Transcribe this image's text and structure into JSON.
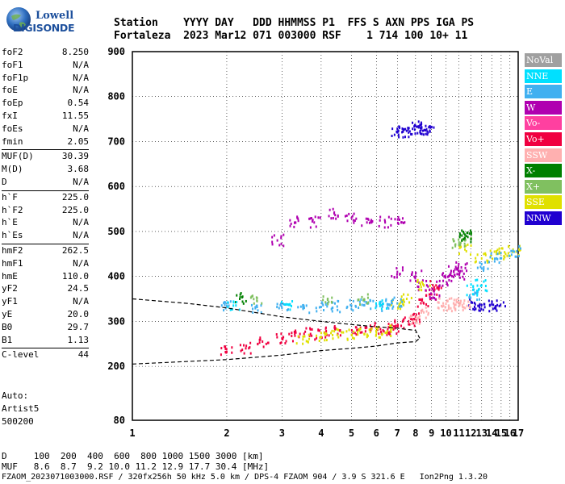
{
  "logo": {
    "top": "Lowell",
    "bottom": "DIGISONDE"
  },
  "header": {
    "line1": "Station    YYYY DAY   DDD HHMMSS P1  FFS S AXN PPS IGA PS",
    "line2": "Fortaleza  2023 Mar12 071 003000 RSF    1 714 100 10+ 11"
  },
  "parameters": [
    {
      "label": "foF2",
      "value": "8.250"
    },
    {
      "label": "foF1",
      "value": "N/A"
    },
    {
      "label": "foF1p",
      "value": "N/A"
    },
    {
      "label": "foE",
      "value": "N/A"
    },
    {
      "label": "foEp",
      "value": "0.54"
    },
    {
      "label": "fxI",
      "value": "11.55"
    },
    {
      "label": "foEs",
      "value": "N/A"
    },
    {
      "label": "fmin",
      "value": "2.05"
    },
    {
      "label": "MUF(D)",
      "value": "30.39"
    },
    {
      "label": "M(D)",
      "value": "3.68"
    },
    {
      "label": "D",
      "value": "N/A"
    },
    {
      "label": "h`F",
      "value": "225.0"
    },
    {
      "label": "h`F2",
      "value": "225.0"
    },
    {
      "label": "h`E",
      "value": "N/A"
    },
    {
      "label": "h`Es",
      "value": "N/A"
    },
    {
      "label": "hmF2",
      "value": "262.5"
    },
    {
      "label": "hmF1",
      "value": "N/A"
    },
    {
      "label": "hmE",
      "value": "110.0"
    },
    {
      "label": "yF2",
      "value": "24.5"
    },
    {
      "label": "yF1",
      "value": "N/A"
    },
    {
      "label": "yE",
      "value": "20.0"
    },
    {
      "label": "B0",
      "value": "29.7"
    },
    {
      "label": "B1",
      "value": "1.13"
    },
    {
      "label": "C-level",
      "value": "44"
    }
  ],
  "auto": {
    "line1": "Auto:",
    "line2": "Artist5",
    "line3": "500200"
  },
  "bottom": {
    "line1": "D     100  200  400  600  800 1000 1500 3000 [km]",
    "line2": "MUF   8.6  8.7  9.2 10.0 11.2 12.9 17.7 30.4 [MHz]",
    "line3": "FZAOM_2023071003000.RSF / 320fx256h 50 kHz 5.0 km / DPS-4 FZAOM 904 / 3.9 S 321.6 E   Ion2Png 1.3.20"
  },
  "chart_data": {
    "type": "scatter",
    "title": "",
    "xlabel": "",
    "ylabel": "",
    "x_scale": "log",
    "xlim": [
      1,
      17
    ],
    "ylim": [
      80,
      900
    ],
    "x_ticks": [
      1,
      2,
      3,
      4,
      5,
      6,
      7,
      8,
      9,
      10,
      11,
      12,
      13,
      14,
      15,
      16,
      17
    ],
    "y_ticks": [
      80,
      200,
      300,
      400,
      500,
      600,
      700,
      800,
      900
    ],
    "legend": [
      {
        "name": "NoVal",
        "color": "#a0a0a0"
      },
      {
        "name": "NNE",
        "color": "#00e0ff"
      },
      {
        "name": "E",
        "color": "#40b0f0"
      },
      {
        "name": "W",
        "color": "#b000b0"
      },
      {
        "name": "Vo-",
        "color": "#ff40a0"
      },
      {
        "name": "Vo+",
        "color": "#f00040"
      },
      {
        "name": "SSW",
        "color": "#ffb0b0"
      },
      {
        "name": "X-",
        "color": "#008000"
      },
      {
        "name": "X+",
        "color": "#80c060"
      },
      {
        "name": "SSE",
        "color": "#e0e000"
      },
      {
        "name": "NNW",
        "color": "#2000d0"
      }
    ],
    "series": [
      {
        "name": "NNW",
        "color": "#2000d0",
        "points": [
          [
            7.0,
            722
          ],
          [
            7.3,
            722
          ],
          [
            7.6,
            720
          ],
          [
            8.0,
            735
          ],
          [
            8.3,
            730
          ],
          [
            8.6,
            725
          ],
          [
            8.9,
            722
          ],
          [
            12.4,
            338
          ],
          [
            12.8,
            336
          ],
          [
            13.8,
            335
          ],
          [
            14.8,
            334
          ]
        ]
      },
      {
        "name": "Vo+",
        "color": "#f00040",
        "points": [
          [
            2.0,
            232
          ],
          [
            2.3,
            240
          ],
          [
            2.6,
            255
          ],
          [
            3.0,
            262
          ],
          [
            3.3,
            268
          ],
          [
            3.7,
            272
          ],
          [
            4.1,
            275
          ],
          [
            4.6,
            280
          ],
          [
            5.2,
            280
          ],
          [
            5.8,
            285
          ],
          [
            6.3,
            280
          ],
          [
            6.8,
            282
          ],
          [
            7.2,
            290
          ],
          [
            7.6,
            300
          ],
          [
            8.0,
            310
          ],
          [
            8.5,
            340
          ],
          [
            9.0,
            360
          ],
          [
            9.3,
            380
          ]
        ]
      },
      {
        "name": "W",
        "color": "#b000b0",
        "points": [
          [
            2.9,
            480
          ],
          [
            3.3,
            520
          ],
          [
            3.8,
            520
          ],
          [
            4.4,
            540
          ],
          [
            5.0,
            530
          ],
          [
            5.6,
            520
          ],
          [
            6.4,
            520
          ],
          [
            7.2,
            520
          ],
          [
            7.0,
            410
          ],
          [
            8.0,
            400
          ],
          [
            8.5,
            380
          ],
          [
            9.2,
            360
          ],
          [
            9.8,
            390
          ],
          [
            10.2,
            400
          ],
          [
            10.6,
            410
          ],
          [
            11.0,
            405
          ],
          [
            11.2,
            420
          ]
        ]
      },
      {
        "name": "SSE",
        "color": "#e0e000",
        "points": [
          [
            3.5,
            260
          ],
          [
            4.0,
            265
          ],
          [
            4.5,
            270
          ],
          [
            5.0,
            270
          ],
          [
            5.5,
            272
          ],
          [
            6.0,
            275
          ],
          [
            6.5,
            278
          ],
          [
            7.0,
            340
          ],
          [
            7.5,
            350
          ],
          [
            8.5,
            380
          ],
          [
            11.5,
            460
          ],
          [
            13.0,
            440
          ],
          [
            14.5,
            450
          ],
          [
            15.5,
            450
          ],
          [
            16.5,
            455
          ]
        ]
      },
      {
        "name": "E",
        "color": "#40b0f0",
        "points": [
          [
            2.0,
            335
          ],
          [
            2.5,
            332
          ],
          [
            3.0,
            330
          ],
          [
            3.5,
            330
          ],
          [
            4.0,
            332
          ],
          [
            4.5,
            333
          ],
          [
            5.0,
            335
          ],
          [
            5.5,
            336
          ],
          [
            6.0,
            335
          ],
          [
            6.5,
            338
          ],
          [
            7.0,
            340
          ],
          [
            12.3,
            360
          ],
          [
            13.2,
            420
          ],
          [
            14.5,
            440
          ],
          [
            16.5,
            455
          ]
        ]
      },
      {
        "name": "SSW",
        "color": "#ffb0b0",
        "points": [
          [
            9.8,
            340
          ],
          [
            10.2,
            335
          ],
          [
            10.6,
            340
          ],
          [
            11.0,
            335
          ],
          [
            11.4,
            340
          ],
          [
            8.0,
            300
          ],
          [
            8.5,
            320
          ]
        ]
      },
      {
        "name": "X+",
        "color": "#80c060",
        "points": [
          [
            2.5,
            345
          ],
          [
            4.2,
            350
          ],
          [
            5.5,
            348
          ],
          [
            11.0,
            470
          ],
          [
            11.5,
            480
          ]
        ]
      },
      {
        "name": "X-",
        "color": "#008000",
        "points": [
          [
            11.5,
            485
          ],
          [
            11.6,
            490
          ],
          [
            2.2,
            350
          ]
        ]
      },
      {
        "name": "NNE",
        "color": "#00e0ff",
        "points": [
          [
            2.1,
            335
          ],
          [
            3.1,
            338
          ],
          [
            6.2,
            336
          ],
          [
            12.2,
            370
          ],
          [
            13.0,
            380
          ]
        ]
      }
    ],
    "profile_line": [
      [
        1,
        205
      ],
      [
        2,
        215
      ],
      [
        3,
        225
      ],
      [
        4,
        235
      ],
      [
        5,
        240
      ],
      [
        6,
        245
      ],
      [
        7,
        252
      ],
      [
        8,
        255
      ],
      [
        8.25,
        262.5
      ]
    ],
    "profile_line_upper": [
      [
        1,
        350
      ],
      [
        1.5,
        340
      ],
      [
        2,
        330
      ],
      [
        3,
        310
      ],
      [
        4,
        300
      ],
      [
        5,
        293
      ],
      [
        6,
        288
      ],
      [
        7,
        285
      ],
      [
        7.5,
        282
      ],
      [
        8,
        280
      ],
      [
        8.25,
        262.5
      ]
    ]
  }
}
